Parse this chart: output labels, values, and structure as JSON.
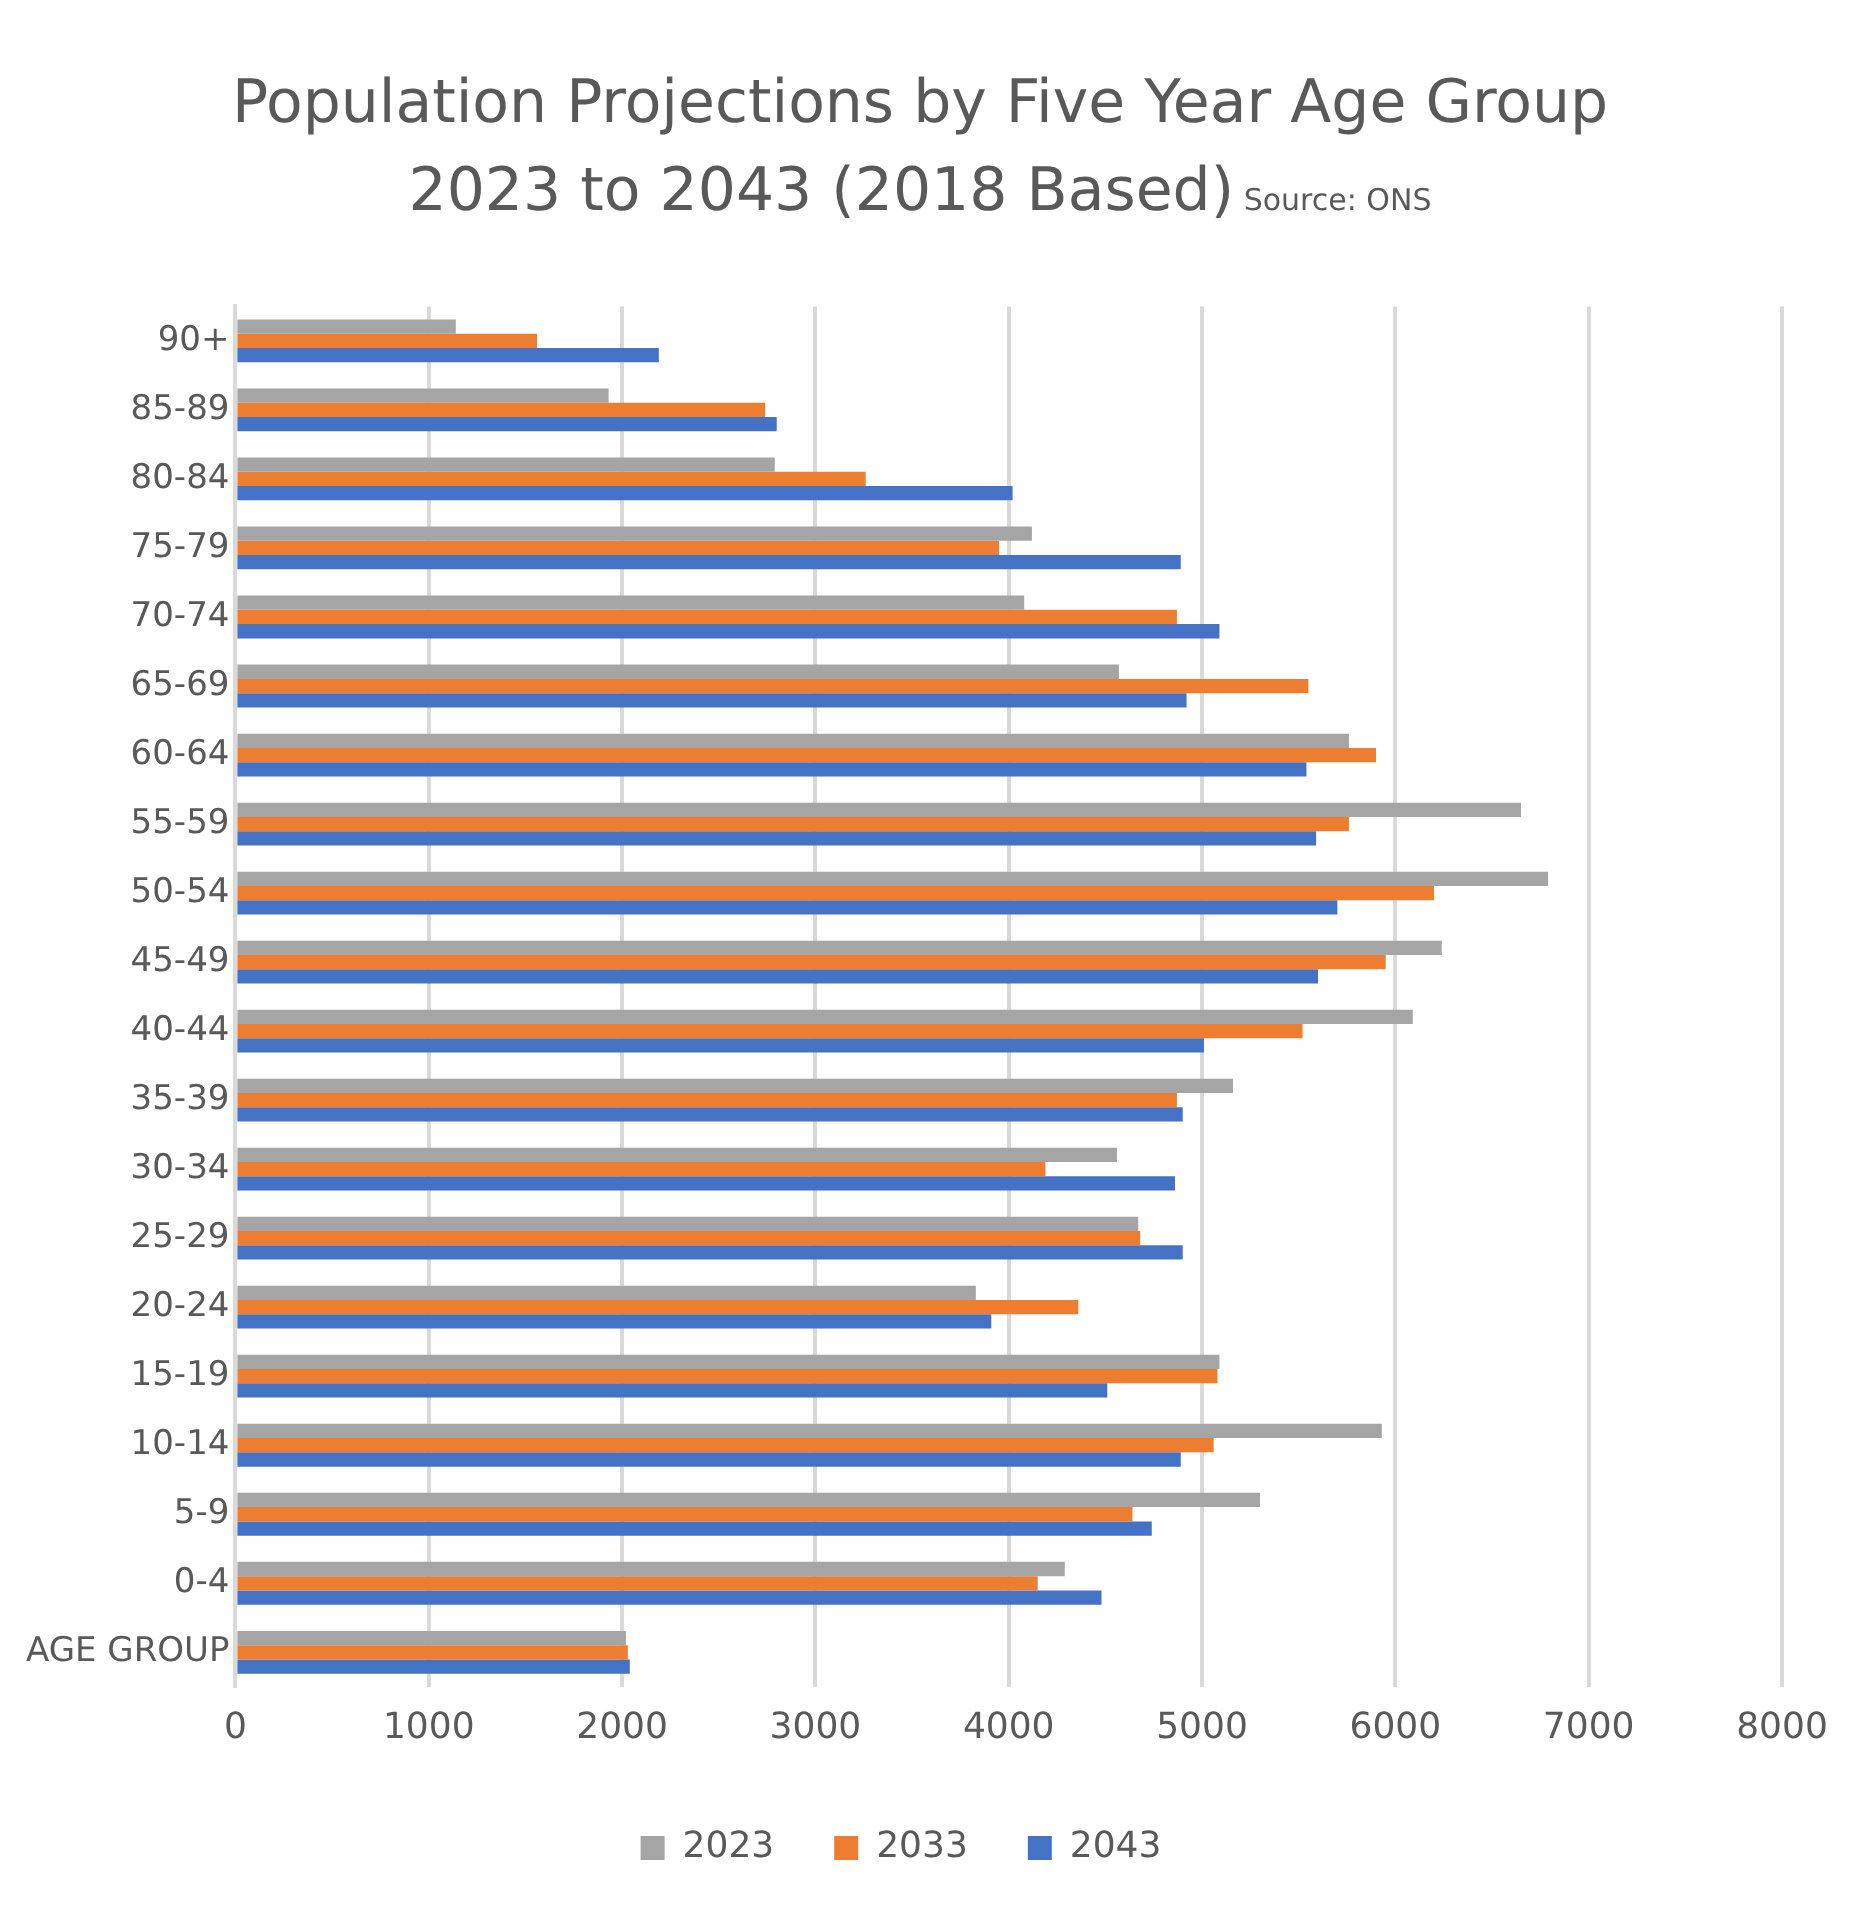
{
  "chart_data": {
    "type": "bar",
    "orientation": "horizontal",
    "title": "Population Projections by Five Year Age Group 2023 to 2043 (2018 Based)",
    "annotations": [
      "Source: ONS"
    ],
    "categories": [
      "90+",
      "85-89",
      "80-84",
      "75-79",
      "70-74",
      "65-69",
      "60-64",
      "55-59",
      "50-54",
      "45-49",
      "40-44",
      "35-39",
      "30-34",
      "25-29",
      "20-24",
      "15-19",
      "10-14",
      "5-9",
      "0-4",
      "AGE GROUP"
    ],
    "series": [
      {
        "name": "2023",
        "color": "#a5a5a5",
        "values": [
          1140,
          1930,
          2790,
          4120,
          4080,
          4570,
          5760,
          6650,
          6790,
          6240,
          6090,
          5160,
          4560,
          4670,
          3830,
          5090,
          5930,
          5300,
          4290,
          2020
        ]
      },
      {
        "name": "2033",
        "color": "#ed7d31",
        "values": [
          1560,
          2740,
          3260,
          3950,
          4870,
          5550,
          5900,
          5760,
          6200,
          5950,
          5520,
          4870,
          4190,
          4680,
          4360,
          5080,
          5060,
          4640,
          4150,
          2030
        ]
      },
      {
        "name": "2043",
        "color": "#4472c4",
        "values": [
          2190,
          2800,
          4020,
          4890,
          5090,
          4920,
          5540,
          5590,
          5700,
          5600,
          5010,
          4900,
          4860,
          4900,
          3910,
          4510,
          4890,
          4740,
          4480,
          2040
        ]
      }
    ],
    "xlim": [
      0,
      8000
    ],
    "xticks": [
      0,
      1000,
      2000,
      3000,
      4000,
      5000,
      6000,
      7000,
      8000
    ],
    "grid": "x",
    "legend": "bottom"
  }
}
